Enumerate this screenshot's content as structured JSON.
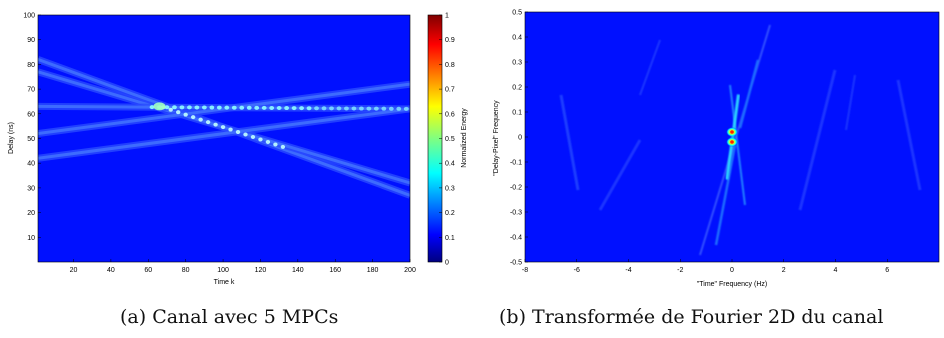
{
  "chart_data": [
    {
      "type": "heatmap",
      "title": "",
      "xlabel": "Time k",
      "ylabel": "Delay (ns)",
      "colorbar_label": "Normalized Energy",
      "xlim": [
        1,
        200
      ],
      "ylim": [
        0,
        100
      ],
      "x_ticks": [
        20,
        40,
        60,
        80,
        100,
        120,
        140,
        160,
        180,
        200
      ],
      "y_ticks": [
        10,
        20,
        30,
        40,
        50,
        60,
        70,
        80,
        90,
        100
      ],
      "colorbar_ticks": [
        0,
        0.1,
        0.2,
        0.3,
        0.4,
        0.5,
        0.6,
        0.7,
        0.8,
        0.9,
        1
      ],
      "colormap": "jet",
      "background_value": 0.08,
      "paths": [
        {
          "delay_start": 82,
          "delay_end": 27,
          "peak": 0.3
        },
        {
          "delay_start": 77,
          "delay_end": 32,
          "peak": 0.3
        },
        {
          "delay_start": 63,
          "delay_end": 62,
          "peak": 0.3
        },
        {
          "delay_start": 52,
          "delay_end": 72,
          "peak": 0.3
        },
        {
          "delay_start": 42,
          "delay_end": 62,
          "peak": 0.3
        }
      ]
    },
    {
      "type": "heatmap",
      "title": "",
      "xlabel": "\"Time\" Frequency (Hz)",
      "ylabel": "\"Delay-Pixel\" Frequency",
      "xlim": [
        -8,
        8
      ],
      "ylim": [
        -0.5,
        0.5
      ],
      "x_ticks": [
        -8,
        -6,
        -4,
        -2,
        0,
        2,
        4,
        6
      ],
      "y_ticks": [
        -0.5,
        -0.4,
        -0.3,
        -0.2,
        -0.1,
        0,
        0.1,
        0.2,
        0.3,
        0.4,
        0.5
      ],
      "colormap": "jet",
      "background_value": 0.08,
      "peaks": [
        {
          "x": 0.0,
          "y": 0.02,
          "value": 1.0
        },
        {
          "x": 0.0,
          "y": -0.02,
          "value": 0.95
        }
      ]
    }
  ],
  "captions": {
    "a": "(a) Canal avec 5 MPCs",
    "b": "(b) Transformée de Fourier 2D du canal"
  }
}
